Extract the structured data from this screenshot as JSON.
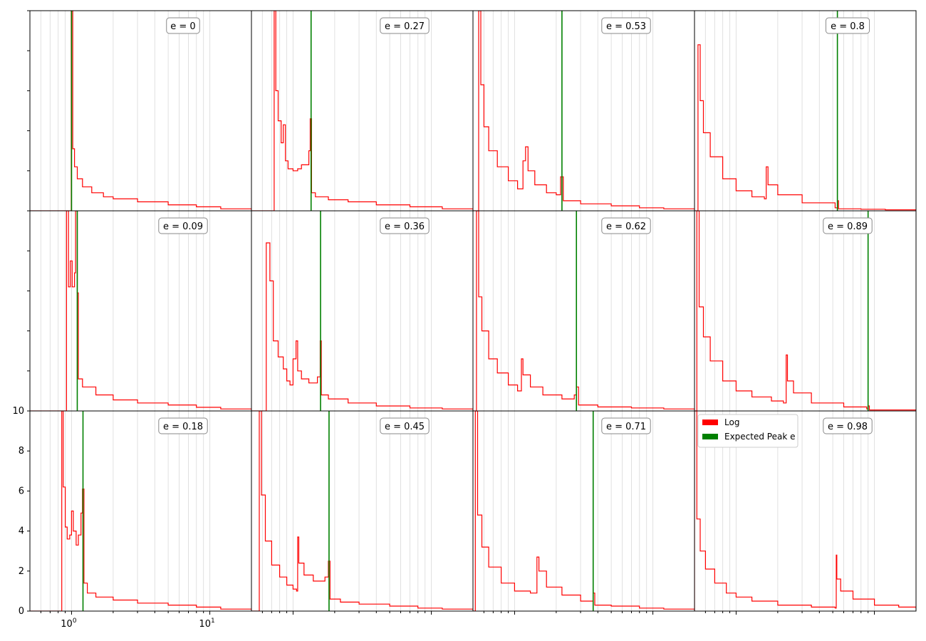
{
  "figure": {
    "legend": {
      "entries": [
        {
          "label": "Log",
          "color": "#ff0000"
        },
        {
          "label": "Expected Peak e",
          "color": "#008000"
        }
      ],
      "placement": "upper-left of bottom-right panel"
    },
    "colors": {
      "histogram": "#ff0000",
      "expected_peak": "#008000",
      "grid": "#e0e0e0"
    }
  },
  "chart_data": {
    "type": "line",
    "layout": "3 rows x 4 columns grid of step histograms, shared axes",
    "x_scale": "log",
    "xlim": [
      0.5,
      20
    ],
    "ylim": [
      0,
      10
    ],
    "x_tick_labels": [
      "10^0",
      "10^1"
    ],
    "y_tick_labels": [
      "0",
      "2",
      "4",
      "6",
      "8",
      "10"
    ],
    "grid": "vertical minor gridlines",
    "panels": [
      {
        "label": "e = 0",
        "e": 0,
        "expected_peak": 1.0,
        "points": [
          [
            0.5,
            0
          ],
          [
            0.99,
            0
          ],
          [
            0.995,
            14
          ],
          [
            1.02,
            3.1
          ],
          [
            1.05,
            2.2
          ],
          [
            1.1,
            1.6
          ],
          [
            1.2,
            1.2
          ],
          [
            1.4,
            0.9
          ],
          [
            1.7,
            0.7
          ],
          [
            2,
            0.6
          ],
          [
            3,
            0.45
          ],
          [
            5,
            0.3
          ],
          [
            8,
            0.2
          ],
          [
            12,
            0.1
          ],
          [
            20,
            0.05
          ]
        ]
      },
      {
        "label": "e = 0.09",
        "e": 0.09,
        "expected_peak": 1.1,
        "points": [
          [
            0.5,
            0
          ],
          [
            0.91,
            0
          ],
          [
            0.92,
            10
          ],
          [
            0.95,
            6.2
          ],
          [
            0.98,
            7.5
          ],
          [
            1.01,
            6.2
          ],
          [
            1.05,
            6.9
          ],
          [
            1.07,
            10
          ],
          [
            1.1,
            5.9
          ],
          [
            1.12,
            1.6
          ],
          [
            1.2,
            1.2
          ],
          [
            1.5,
            0.8
          ],
          [
            2,
            0.55
          ],
          [
            3,
            0.4
          ],
          [
            5,
            0.3
          ],
          [
            8,
            0.18
          ],
          [
            12,
            0.1
          ],
          [
            20,
            0.05
          ]
        ]
      },
      {
        "label": "e = 0.18",
        "e": 0.18,
        "expected_peak": 1.21,
        "points": [
          [
            0.5,
            0
          ],
          [
            0.82,
            0
          ],
          [
            0.85,
            10
          ],
          [
            0.87,
            6.2
          ],
          [
            0.9,
            4.2
          ],
          [
            0.93,
            3.6
          ],
          [
            0.97,
            3.8
          ],
          [
            1.0,
            5.0
          ],
          [
            1.03,
            4.0
          ],
          [
            1.08,
            3.3
          ],
          [
            1.12,
            3.8
          ],
          [
            1.17,
            4.9
          ],
          [
            1.2,
            6.1
          ],
          [
            1.23,
            1.4
          ],
          [
            1.3,
            0.9
          ],
          [
            1.5,
            0.7
          ],
          [
            2,
            0.55
          ],
          [
            3,
            0.4
          ],
          [
            5,
            0.3
          ],
          [
            8,
            0.2
          ],
          [
            12,
            0.1
          ],
          [
            20,
            0.05
          ]
        ]
      },
      {
        "label": "e = 0.27",
        "e": 0.27,
        "expected_peak": 1.35,
        "points": [
          [
            0.5,
            0
          ],
          [
            0.72,
            0
          ],
          [
            0.73,
            10
          ],
          [
            0.75,
            6
          ],
          [
            0.78,
            4.5
          ],
          [
            0.82,
            3.4
          ],
          [
            0.85,
            4.3
          ],
          [
            0.88,
            2.5
          ],
          [
            0.92,
            2.1
          ],
          [
            1.0,
            2.0
          ],
          [
            1.08,
            2.1
          ],
          [
            1.15,
            2.3
          ],
          [
            1.3,
            3.0
          ],
          [
            1.33,
            4.6
          ],
          [
            1.36,
            0.9
          ],
          [
            1.45,
            0.7
          ],
          [
            1.8,
            0.55
          ],
          [
            2.5,
            0.45
          ],
          [
            4,
            0.3
          ],
          [
            7,
            0.2
          ],
          [
            12,
            0.1
          ],
          [
            20,
            0.05
          ]
        ]
      },
      {
        "label": "e = 0.36",
        "e": 0.36,
        "expected_peak": 1.58,
        "points": [
          [
            0.5,
            0
          ],
          [
            0.62,
            0
          ],
          [
            0.64,
            8.4
          ],
          [
            0.68,
            6.5
          ],
          [
            0.72,
            3.5
          ],
          [
            0.78,
            2.7
          ],
          [
            0.85,
            2.1
          ],
          [
            0.9,
            1.5
          ],
          [
            0.95,
            1.3
          ],
          [
            1.0,
            2.6
          ],
          [
            1.05,
            3.5
          ],
          [
            1.08,
            2.0
          ],
          [
            1.15,
            1.6
          ],
          [
            1.3,
            1.4
          ],
          [
            1.5,
            1.7
          ],
          [
            1.57,
            3.5
          ],
          [
            1.6,
            0.8
          ],
          [
            1.8,
            0.6
          ],
          [
            2.5,
            0.4
          ],
          [
            4,
            0.25
          ],
          [
            7,
            0.15
          ],
          [
            12,
            0.1
          ],
          [
            20,
            0.05
          ]
        ]
      },
      {
        "label": "e = 0.45",
        "e": 0.45,
        "expected_peak": 1.82,
        "points": [
          [
            0.5,
            0
          ],
          [
            0.55,
            0
          ],
          [
            0.57,
            10
          ],
          [
            0.59,
            5.8
          ],
          [
            0.63,
            3.5
          ],
          [
            0.7,
            2.3
          ],
          [
            0.8,
            1.7
          ],
          [
            0.9,
            1.3
          ],
          [
            1.0,
            1.1
          ],
          [
            1.06,
            1.0
          ],
          [
            1.08,
            3.7
          ],
          [
            1.1,
            2.4
          ],
          [
            1.2,
            1.8
          ],
          [
            1.4,
            1.5
          ],
          [
            1.7,
            1.7
          ],
          [
            1.8,
            2.5
          ],
          [
            1.85,
            0.6
          ],
          [
            2.2,
            0.45
          ],
          [
            3,
            0.35
          ],
          [
            5,
            0.25
          ],
          [
            8,
            0.15
          ],
          [
            12,
            0.1
          ],
          [
            20,
            0.05
          ]
        ]
      },
      {
        "label": "e = 0.53",
        "e": 0.53,
        "expected_peak": 2.2,
        "points": [
          [
            0.5,
            0
          ],
          [
            0.53,
            0
          ],
          [
            0.55,
            10
          ],
          [
            0.57,
            6.3
          ],
          [
            0.6,
            4.2
          ],
          [
            0.65,
            3.0
          ],
          [
            0.75,
            2.2
          ],
          [
            0.9,
            1.5
          ],
          [
            1.05,
            1.1
          ],
          [
            1.15,
            2.5
          ],
          [
            1.2,
            3.2
          ],
          [
            1.25,
            2.0
          ],
          [
            1.4,
            1.3
          ],
          [
            1.7,
            0.9
          ],
          [
            2.0,
            0.8
          ],
          [
            2.15,
            1.7
          ],
          [
            2.25,
            0.5
          ],
          [
            3,
            0.35
          ],
          [
            5,
            0.25
          ],
          [
            8,
            0.15
          ],
          [
            12,
            0.1
          ],
          [
            20,
            0.05
          ]
        ]
      },
      {
        "label": "e = 0.62",
        "e": 0.62,
        "expected_peak": 2.8,
        "points": [
          [
            0.5,
            0
          ],
          [
            0.52,
            0
          ],
          [
            0.53,
            10
          ],
          [
            0.55,
            5.7
          ],
          [
            0.58,
            4.0
          ],
          [
            0.65,
            2.6
          ],
          [
            0.75,
            1.9
          ],
          [
            0.9,
            1.3
          ],
          [
            1.05,
            1.0
          ],
          [
            1.12,
            2.6
          ],
          [
            1.15,
            1.8
          ],
          [
            1.3,
            1.2
          ],
          [
            1.6,
            0.8
          ],
          [
            2.2,
            0.6
          ],
          [
            2.7,
            0.8
          ],
          [
            2.8,
            1.2
          ],
          [
            2.9,
            0.3
          ],
          [
            4,
            0.2
          ],
          [
            7,
            0.15
          ],
          [
            12,
            0.1
          ],
          [
            20,
            0.05
          ]
        ]
      },
      {
        "label": "e = 0.71",
        "e": 0.71,
        "expected_peak": 3.7,
        "points": [
          [
            0.5,
            0
          ],
          [
            0.51,
            0
          ],
          [
            0.52,
            10
          ],
          [
            0.54,
            4.8
          ],
          [
            0.58,
            3.2
          ],
          [
            0.65,
            2.2
          ],
          [
            0.8,
            1.4
          ],
          [
            1.0,
            1.0
          ],
          [
            1.3,
            0.9
          ],
          [
            1.45,
            2.7
          ],
          [
            1.5,
            2.0
          ],
          [
            1.7,
            1.2
          ],
          [
            2.2,
            0.8
          ],
          [
            3.0,
            0.5
          ],
          [
            3.6,
            0.5
          ],
          [
            3.7,
            0.9
          ],
          [
            3.8,
            0.3
          ],
          [
            5,
            0.25
          ],
          [
            8,
            0.15
          ],
          [
            12,
            0.1
          ],
          [
            20,
            0.05
          ]
        ]
      },
      {
        "label": "e = 0.8",
        "e": 0.8,
        "expected_peak": 5.4,
        "points": [
          [
            0.5,
            0
          ],
          [
            0.52,
            0
          ],
          [
            0.53,
            8.3
          ],
          [
            0.55,
            5.5
          ],
          [
            0.58,
            3.9
          ],
          [
            0.65,
            2.7
          ],
          [
            0.8,
            1.6
          ],
          [
            1.0,
            1.0
          ],
          [
            1.3,
            0.7
          ],
          [
            1.6,
            0.6
          ],
          [
            1.65,
            2.2
          ],
          [
            1.7,
            1.3
          ],
          [
            2.0,
            0.8
          ],
          [
            3,
            0.4
          ],
          [
            5.2,
            0.15
          ],
          [
            5.4,
            0.5
          ],
          [
            5.5,
            0.1
          ],
          [
            8,
            0.08
          ],
          [
            12,
            0.05
          ],
          [
            20,
            0.02
          ]
        ]
      },
      {
        "label": "e = 0.89",
        "e": 0.89,
        "expected_peak": 9.0,
        "points": [
          [
            0.5,
            0
          ],
          [
            0.51,
            0
          ],
          [
            0.52,
            10
          ],
          [
            0.54,
            5.2
          ],
          [
            0.58,
            3.7
          ],
          [
            0.65,
            2.5
          ],
          [
            0.8,
            1.5
          ],
          [
            1.0,
            1.0
          ],
          [
            1.3,
            0.7
          ],
          [
            1.8,
            0.5
          ],
          [
            2.2,
            0.4
          ],
          [
            2.3,
            2.8
          ],
          [
            2.35,
            1.5
          ],
          [
            2.6,
            0.9
          ],
          [
            3.5,
            0.4
          ],
          [
            6,
            0.2
          ],
          [
            8.8,
            0.1
          ],
          [
            9.0,
            0.25
          ],
          [
            9.2,
            0.05
          ],
          [
            15,
            0.05
          ],
          [
            20,
            0.02
          ]
        ]
      },
      {
        "label": "e = 0.98",
        "e": 0.98,
        "expected_peak": null,
        "points": [
          [
            0.5,
            0
          ],
          [
            0.5,
            10
          ],
          [
            0.52,
            4.6
          ],
          [
            0.55,
            3.0
          ],
          [
            0.6,
            2.1
          ],
          [
            0.7,
            1.4
          ],
          [
            0.85,
            0.9
          ],
          [
            1.0,
            0.7
          ],
          [
            1.3,
            0.5
          ],
          [
            2,
            0.3
          ],
          [
            3.5,
            0.2
          ],
          [
            5.2,
            0.15
          ],
          [
            5.3,
            2.8
          ],
          [
            5.35,
            1.6
          ],
          [
            5.7,
            1.0
          ],
          [
            7,
            0.6
          ],
          [
            10,
            0.3
          ],
          [
            15,
            0.2
          ],
          [
            20,
            0.1
          ]
        ]
      }
    ]
  }
}
